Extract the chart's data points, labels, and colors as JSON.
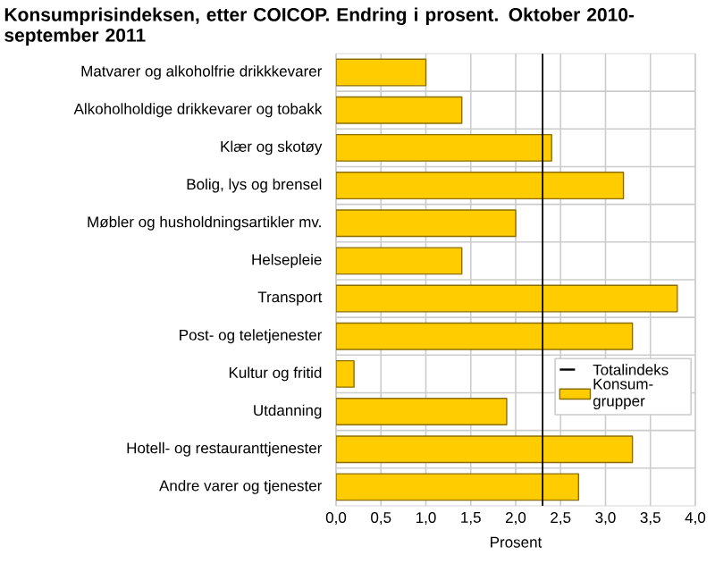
{
  "chart_data": {
    "type": "bar",
    "orientation": "horizontal",
    "title": "Konsumprisindeksen, etter COICOP. Endring i prosent. Oktober 2010-september 2011",
    "xlabel": "Prosent",
    "categories": [
      "Matvarer og alkoholfrie drikkkevarer",
      "Alkoholholdige drikkevarer og tobakk",
      "Klær og skotøy",
      "Bolig, lys og brensel",
      "Møbler og husholdningsartikler mv.",
      "Helsepleie",
      "Transport",
      "Post- og teletjenester",
      "Kultur og fritid",
      "Utdanning",
      "Hotell- og restauranttjenester",
      "Andre varer og tjenester"
    ],
    "series": [
      {
        "name": "Konsum-grupper",
        "color": "#ffcc00",
        "values": [
          1.0,
          1.4,
          2.4,
          3.2,
          2.0,
          1.4,
          3.8,
          3.3,
          0.2,
          1.9,
          3.3,
          2.7
        ]
      }
    ],
    "ref_lines": [
      {
        "axis": "x",
        "value": 2.3,
        "label": "Totalindeks",
        "color": "#000000"
      }
    ],
    "xlim": [
      0,
      4
    ],
    "xticks": [
      {
        "value": 0,
        "label": "0,0"
      },
      {
        "value": 0.5,
        "label": "0,5"
      },
      {
        "value": 1,
        "label": "1,0"
      },
      {
        "value": 1.5,
        "label": "1,5"
      },
      {
        "value": 2,
        "label": "2,0"
      },
      {
        "value": 2.5,
        "label": "2,5"
      },
      {
        "value": 3,
        "label": "3,0"
      },
      {
        "value": 3.5,
        "label": "3,5"
      },
      {
        "value": 4,
        "label": "4,0"
      }
    ],
    "grid": true,
    "legend": "bottom right"
  }
}
